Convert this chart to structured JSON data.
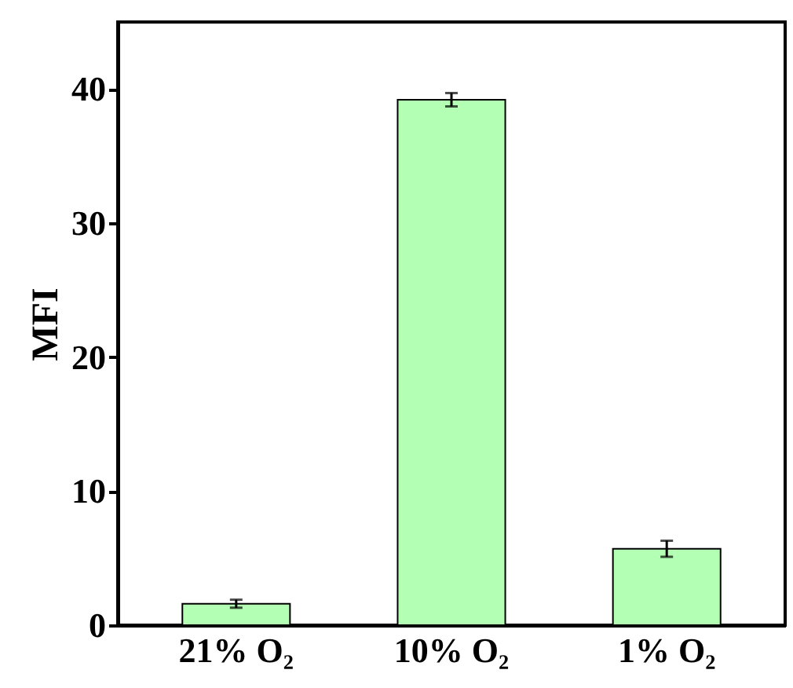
{
  "chart_data": {
    "type": "bar",
    "ylabel": "MFI",
    "categories": [
      "21% O₂",
      "10% O₂",
      "1% O₂"
    ],
    "values": [
      1.6,
      39.2,
      5.7
    ],
    "errors": [
      0.3,
      0.5,
      0.6
    ],
    "color": "#b3ffb3",
    "ylim": [
      0,
      45
    ],
    "yticks": [
      0,
      10,
      20,
      30,
      40
    ],
    "grid": false
  }
}
